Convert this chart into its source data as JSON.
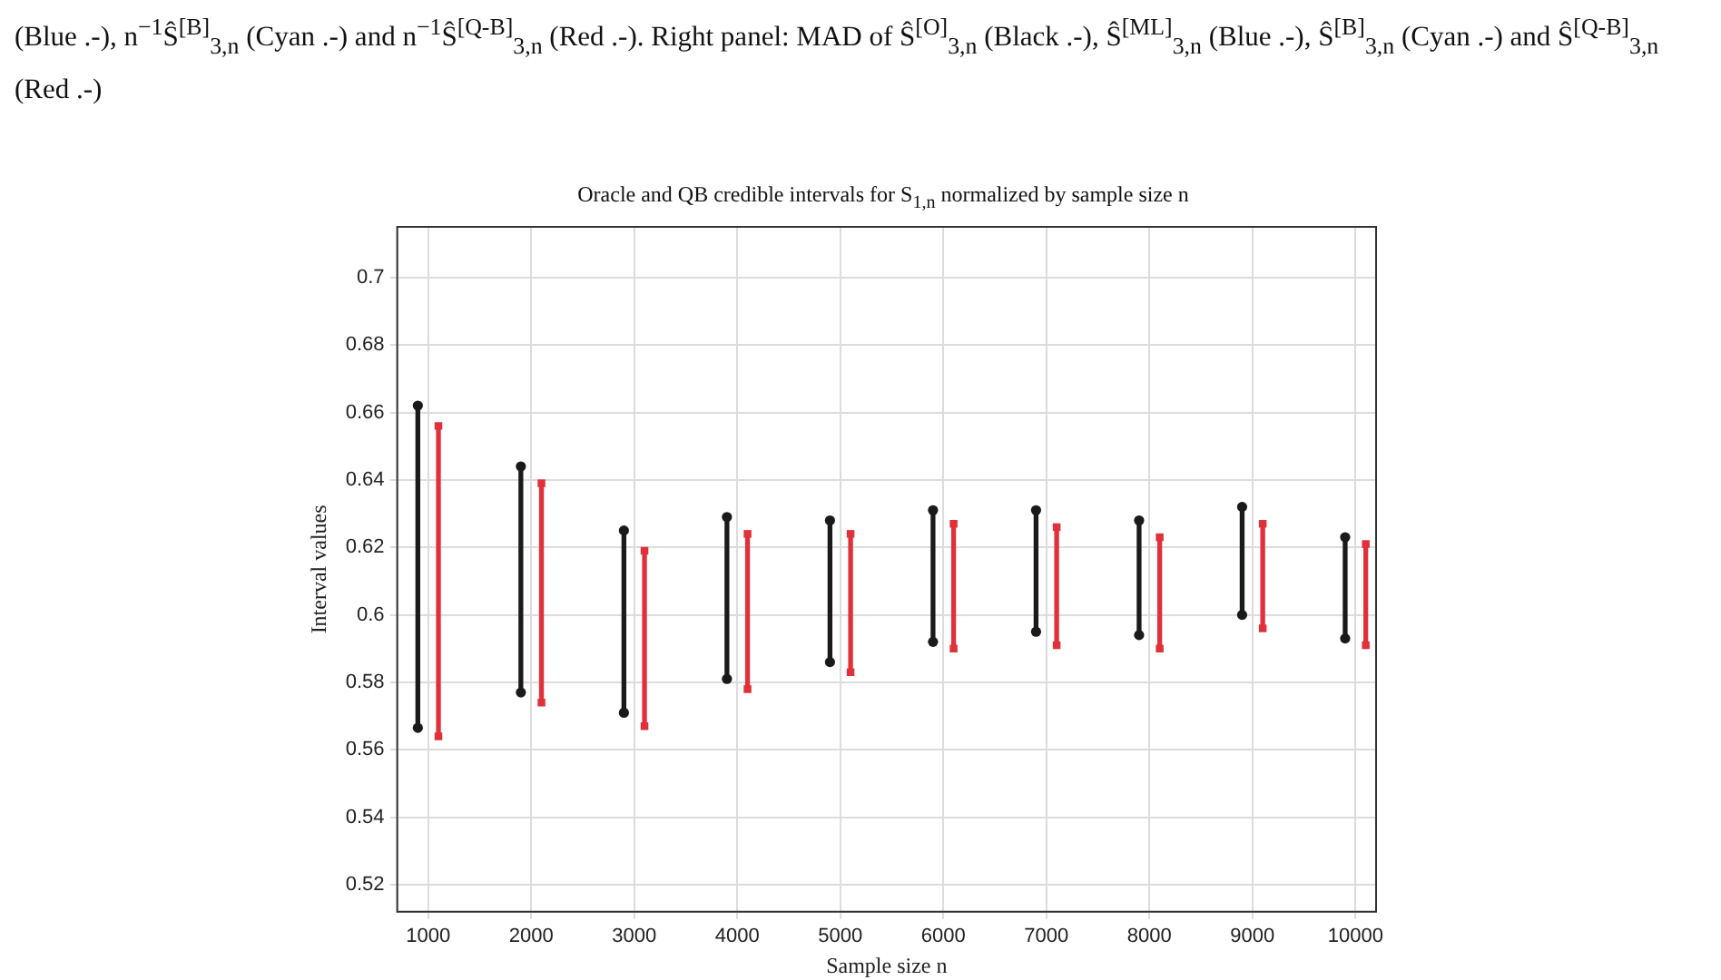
{
  "chart_data": {
    "type": "bar",
    "title": "Oracle and QB credible intervals for S$_{1,n}$ normalized by sample size n",
    "xlabel": "Sample size n",
    "ylabel": "Interval values",
    "annotations": [
      "(Blue .-), n$^{−1}$Ŝ$^{[B]}$$_{3,n}$ (Cyan .-) and n$^{−1}$Ŝ$^{[Q-B]}$$_{3,n}$ (Red .-). Right panel: MAD of Ŝ$^{[O]}$$_{3,n}$ (Black .-), Ŝ$^{[ML]}$$_{3,n}$ (Blue .-), Ŝ$^{[B]}$$_{3,n}$ (Cyan .-) and Ŝ$^{[Q-B]}$$_{3,n}$ (Red .-)"
    ],
    "series": [
      {
        "color": "#1a1a1a",
        "x": [
          900,
          1900,
          2900,
          3900,
          4900,
          5900,
          6900,
          7900,
          8900,
          9900
        ],
        "base": [
          0.5665,
          0.577,
          0.571,
          0.581,
          0.586,
          0.592,
          0.595,
          0.594,
          0.6,
          0.593
        ],
        "values": [
          0.0955,
          0.067,
          0.054,
          0.048,
          0.042,
          0.039,
          0.036,
          0.034,
          0.032,
          0.03
        ]
      },
      {
        "color": "#e0313a",
        "x": [
          1100,
          2100,
          3100,
          4100,
          5100,
          6100,
          7100,
          8100,
          9100,
          10100
        ],
        "base": [
          0.564,
          0.574,
          0.567,
          0.578,
          0.583,
          0.59,
          0.591,
          0.59,
          0.596,
          0.591
        ],
        "values": [
          0.092,
          0.065,
          0.052,
          0.046,
          0.041,
          0.037,
          0.035,
          0.033,
          0.031,
          0.03
        ]
      },
      {
        "type": "scatter",
        "color": "#1a1a1a",
        "x": [
          900,
          900,
          1900,
          1900,
          2900,
          2900,
          3900,
          3900,
          4900,
          4900,
          5900,
          5900,
          6900,
          6900,
          7900,
          7900,
          8900,
          8900,
          9900,
          9900
        ],
        "values": [
          0.5665,
          0.662,
          0.577,
          0.644,
          0.571,
          0.625,
          0.581,
          0.629,
          0.586,
          0.628,
          0.592,
          0.631,
          0.595,
          0.631,
          0.594,
          0.628,
          0.6,
          0.632,
          0.593,
          0.623
        ]
      },
      {
        "type": "scatter",
        "color": "#e0313a",
        "marker": "square",
        "x": [
          1100,
          1100,
          2100,
          2100,
          3100,
          3100,
          4100,
          4100,
          5100,
          5100,
          6100,
          6100,
          7100,
          7100,
          8100,
          8100,
          9100,
          9100,
          10100,
          10100
        ],
        "values": [
          0.564,
          0.656,
          0.574,
          0.639,
          0.567,
          0.619,
          0.578,
          0.624,
          0.583,
          0.624,
          0.59,
          0.627,
          0.591,
          0.626,
          0.59,
          0.623,
          0.596,
          0.627,
          0.591,
          0.621
        ]
      }
    ],
    "xlim": [
      700,
      10200
    ],
    "xticks": [
      1000,
      2000,
      3000,
      4000,
      5000,
      6000,
      7000,
      8000,
      9000,
      10000
    ],
    "ylim": [
      0.512,
      0.715
    ],
    "yticks": [
      0.52,
      0.54,
      0.56,
      0.58,
      0.6,
      0.62,
      0.64,
      0.66,
      0.68,
      0.7
    ],
    "marker": "circle",
    "grid": true,
    "legend": false
  }
}
